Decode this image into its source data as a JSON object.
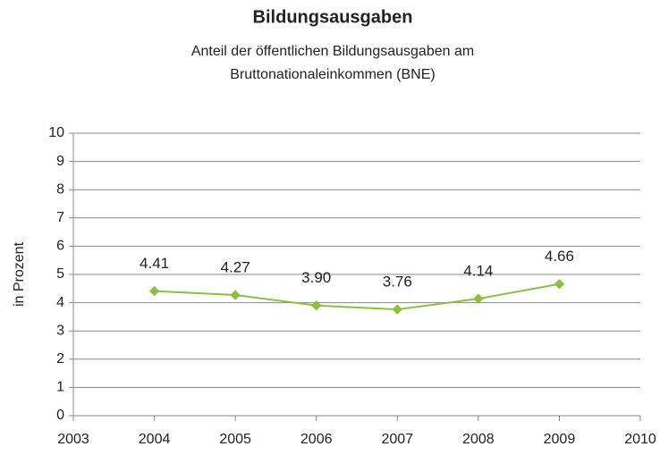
{
  "chart_data": {
    "type": "line",
    "title": "Bildungsausgaben",
    "subtitle": [
      "Anteil der öffentlichen Bildungsausgaben am",
      "Bruttonationaleinkommen (BNE)"
    ],
    "ylabel": "in Prozent",
    "x": [
      2004,
      2005,
      2006,
      2007,
      2008,
      2009
    ],
    "series": [
      {
        "name": "Bildungsausgaben",
        "color": "#8cbf3f",
        "values": [
          4.41,
          4.27,
          3.9,
          3.76,
          4.14,
          4.66
        ],
        "value_labels": [
          "4.41",
          "4.27",
          "3.90",
          "3.76",
          "4.14",
          "4.66"
        ]
      }
    ],
    "xlim": [
      2003,
      2010
    ],
    "xticks": [
      2003,
      2004,
      2005,
      2006,
      2007,
      2008,
      2009,
      2010
    ],
    "ylim": [
      0,
      10
    ],
    "yticks": [
      0,
      1,
      2,
      3,
      4,
      5,
      6,
      7,
      8,
      9,
      10
    ],
    "grid": true,
    "legend": false
  }
}
